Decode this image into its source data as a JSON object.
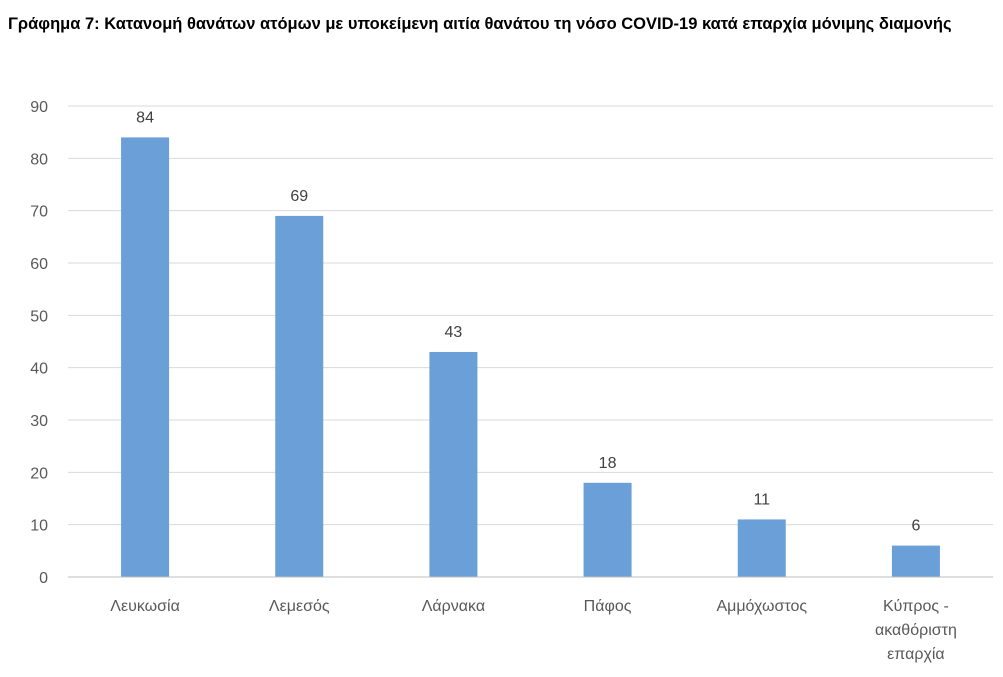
{
  "chart_data": {
    "type": "bar",
    "title": "Γράφημα 7: Κατανομή θανάτων ατόμων με υποκείμενη αιτία θανάτου τη νόσο COVID-19 κατά επαρχία μόνιμης διαμονής",
    "categories": [
      [
        "Λευκωσία"
      ],
      [
        "Λεμεσός"
      ],
      [
        "Λάρνακα"
      ],
      [
        "Πάφος"
      ],
      [
        "Αμμόχωστος"
      ],
      [
        "Κύπρος -",
        "ακαθόριστη",
        "επαρχία"
      ]
    ],
    "values": [
      84,
      69,
      43,
      18,
      11,
      6
    ],
    "yticks": [
      0,
      10,
      20,
      30,
      40,
      50,
      60,
      70,
      80,
      90
    ],
    "ylim": [
      0,
      90
    ],
    "xlabel": "",
    "ylabel": "",
    "grid": true,
    "legend": "none",
    "colors": {
      "bar": "#6a9fd8",
      "grid": "#d9d9d9",
      "axis": "#bfbfbf"
    }
  }
}
